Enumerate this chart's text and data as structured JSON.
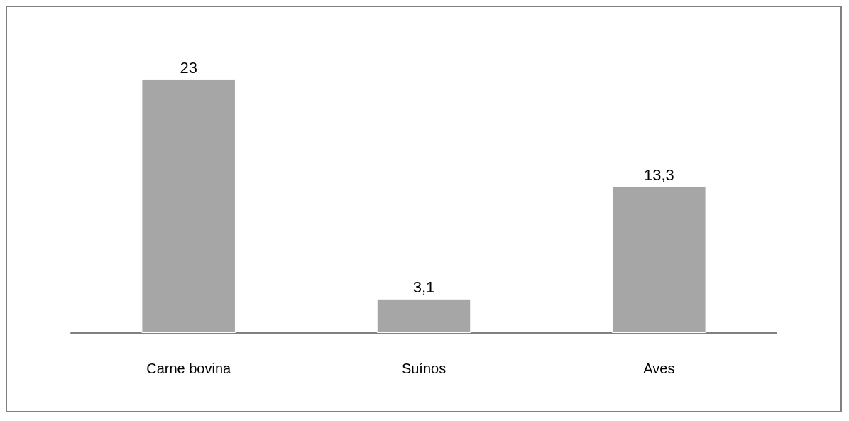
{
  "chart_data": {
    "type": "bar",
    "categories": [
      "Carne bovina",
      "Suínos",
      "Aves"
    ],
    "values": [
      23,
      3.1,
      13.3
    ],
    "value_labels": [
      "23",
      "3,1",
      "13,3"
    ],
    "color": "#a6a6a6"
  }
}
